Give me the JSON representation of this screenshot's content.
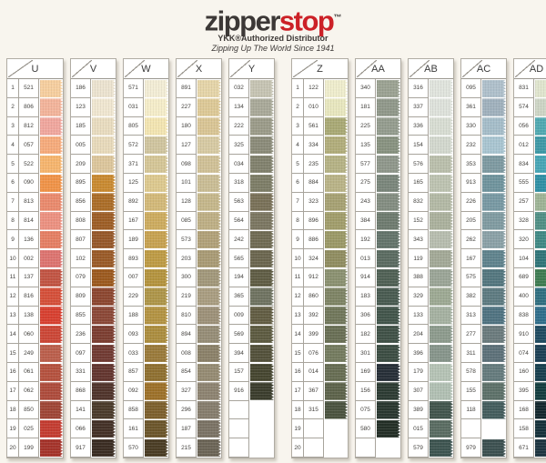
{
  "header": {
    "logo_zipper": "zipper",
    "logo_stop": "stop",
    "logo_tm": "™",
    "subtitle": "YKK®Authorized Distributor",
    "tagline": "Zipping Up The World Since 1941",
    "brand_dark": "#3c3836",
    "brand_red": "#cc2127"
  },
  "row_numbers": [
    "1",
    "2",
    "3",
    "4",
    "5",
    "6",
    "7",
    "8",
    "9",
    "10",
    "11",
    "12",
    "13",
    "14",
    "15",
    "16",
    "17",
    "18",
    "19",
    "20"
  ],
  "columns": [
    {
      "label": "U",
      "has_numbers": true,
      "gap_before": false,
      "swatches": [
        {
          "code": "521",
          "color": "#f6cf9f"
        },
        {
          "code": "806",
          "color": "#f3b49b"
        },
        {
          "code": "812",
          "color": "#f0a79e"
        },
        {
          "code": "057",
          "color": "#f6ab7c"
        },
        {
          "code": "522",
          "color": "#f6b56e"
        },
        {
          "code": "090",
          "color": "#f09348"
        },
        {
          "code": "813",
          "color": "#ea8a6d"
        },
        {
          "code": "814",
          "color": "#ec9181"
        },
        {
          "code": "136",
          "color": "#e57f64"
        },
        {
          "code": "002",
          "color": "#dd7470"
        },
        {
          "code": "137",
          "color": "#c25544"
        },
        {
          "code": "816",
          "color": "#d5503a"
        },
        {
          "code": "138",
          "color": "#d84030"
        },
        {
          "code": "060",
          "color": "#cc4737"
        },
        {
          "code": "249",
          "color": "#bb5f4c"
        },
        {
          "code": "061",
          "color": "#b5523f"
        },
        {
          "code": "062",
          "color": "#ae4c3c"
        },
        {
          "code": "850",
          "color": "#9f4636"
        },
        {
          "code": "025",
          "color": "#c43d31"
        },
        {
          "code": "199",
          "color": "#a5342b"
        }
      ]
    },
    {
      "label": "V",
      "has_numbers": false,
      "gap_before": false,
      "swatches": [
        {
          "code": "186",
          "color": "#ece3d0"
        },
        {
          "code": "123",
          "color": "#f0e7d1"
        },
        {
          "code": "185",
          "color": "#e9dcc0"
        },
        {
          "code": "005",
          "color": "#e8dabb"
        },
        {
          "code": "209",
          "color": "#dcc69c"
        },
        {
          "code": "895",
          "color": "#c98a31"
        },
        {
          "code": "856",
          "color": "#ab6d28"
        },
        {
          "code": "808",
          "color": "#9d5e26"
        },
        {
          "code": "807",
          "color": "#96582a"
        },
        {
          "code": "102",
          "color": "#9a5b28"
        },
        {
          "code": "079",
          "color": "#9c5a1f"
        },
        {
          "code": "809",
          "color": "#8c4730"
        },
        {
          "code": "855",
          "color": "#8b4837"
        },
        {
          "code": "236",
          "color": "#7c3e31"
        },
        {
          "code": "097",
          "color": "#713b33"
        },
        {
          "code": "331",
          "color": "#63362f"
        },
        {
          "code": "868",
          "color": "#50342b"
        },
        {
          "code": "141",
          "color": "#4b3b2b"
        },
        {
          "code": "066",
          "color": "#443127"
        },
        {
          "code": "917",
          "color": "#3b2d23"
        }
      ]
    },
    {
      "label": "W",
      "has_numbers": false,
      "gap_before": false,
      "swatches": [
        {
          "code": "571",
          "color": "#f3edd6"
        },
        {
          "code": "031",
          "color": "#f5edca"
        },
        {
          "code": "805",
          "color": "#f3e5b2"
        },
        {
          "code": "572",
          "color": "#d0c59f"
        },
        {
          "code": "371",
          "color": "#d5c697"
        },
        {
          "code": "125",
          "color": "#ddc98f"
        },
        {
          "code": "892",
          "color": "#d3b979"
        },
        {
          "code": "167",
          "color": "#cdac5f"
        },
        {
          "code": "189",
          "color": "#c7a251"
        },
        {
          "code": "893",
          "color": "#be9b45"
        },
        {
          "code": "007",
          "color": "#b4943f"
        },
        {
          "code": "229",
          "color": "#ae9549"
        },
        {
          "code": "188",
          "color": "#b39343"
        },
        {
          "code": "093",
          "color": "#ac8d3f"
        },
        {
          "code": "033",
          "color": "#9a7a3b"
        },
        {
          "code": "857",
          "color": "#8f7031"
        },
        {
          "code": "092",
          "color": "#9d7129"
        },
        {
          "code": "858",
          "color": "#7d602d"
        },
        {
          "code": "161",
          "color": "#6c562b"
        },
        {
          "code": "570",
          "color": "#4b3d25"
        }
      ]
    },
    {
      "label": "X",
      "has_numbers": false,
      "gap_before": false,
      "swatches": [
        {
          "code": "891",
          "color": "#e5d5a9"
        },
        {
          "code": "227",
          "color": "#ddc997"
        },
        {
          "code": "180",
          "color": "#d9c595"
        },
        {
          "code": "127",
          "color": "#d7caa3"
        },
        {
          "code": "098",
          "color": "#d0c197"
        },
        {
          "code": "101",
          "color": "#cabd95"
        },
        {
          "code": "128",
          "color": "#c5b78b"
        },
        {
          "code": "085",
          "color": "#beaf85"
        },
        {
          "code": "573",
          "color": "#b1a179"
        },
        {
          "code": "203",
          "color": "#a99b75"
        },
        {
          "code": "300",
          "color": "#a2987b"
        },
        {
          "code": "219",
          "color": "#a99d81"
        },
        {
          "code": "810",
          "color": "#9d9179"
        },
        {
          "code": "894",
          "color": "#968d77"
        },
        {
          "code": "008",
          "color": "#8b8169"
        },
        {
          "code": "854",
          "color": "#958b73"
        },
        {
          "code": "327",
          "color": "#8d8371"
        },
        {
          "code": "296",
          "color": "#867d6d"
        },
        {
          "code": "187",
          "color": "#7b7365"
        },
        {
          "code": "215",
          "color": "#6c6557"
        }
      ]
    },
    {
      "label": "Y",
      "has_numbers": false,
      "gap_before": false,
      "swatches": [
        {
          "code": "032",
          "color": "#c6c4b3"
        },
        {
          "code": "134",
          "color": "#a9a999"
        },
        {
          "code": "222",
          "color": "#9b9b89"
        },
        {
          "code": "325",
          "color": "#8b8b79"
        },
        {
          "code": "034",
          "color": "#81816d"
        },
        {
          "code": "318",
          "color": "#7d7d67"
        },
        {
          "code": "563",
          "color": "#797158"
        },
        {
          "code": "564",
          "color": "#7b7661"
        },
        {
          "code": "242",
          "color": "#706b53"
        },
        {
          "code": "565",
          "color": "#6b664f"
        },
        {
          "code": "194",
          "color": "#605d45"
        },
        {
          "code": "365",
          "color": "#6f7361"
        },
        {
          "code": "009",
          "color": "#625d43"
        },
        {
          "code": "569",
          "color": "#5d5b41"
        },
        {
          "code": "394",
          "color": "#53513b"
        },
        {
          "code": "157",
          "color": "#464630"
        },
        {
          "code": "916",
          "color": "#3b3d2d"
        },
        {
          "code": "",
          "color": null
        },
        {
          "code": "",
          "color": null
        },
        {
          "code": "",
          "color": null
        }
      ]
    },
    {
      "label": "Z",
      "has_numbers": true,
      "gap_before": true,
      "swatches": [
        {
          "code": "122",
          "color": "#efedcd"
        },
        {
          "code": "010",
          "color": "#e8e7bf"
        },
        {
          "code": "561",
          "color": "#a9a975"
        },
        {
          "code": "334",
          "color": "#b1ad7b"
        },
        {
          "code": "235",
          "color": "#b5b285"
        },
        {
          "code": "884",
          "color": "#b9b387"
        },
        {
          "code": "323",
          "color": "#a6a173"
        },
        {
          "code": "896",
          "color": "#a19d6b"
        },
        {
          "code": "886",
          "color": "#9b9967"
        },
        {
          "code": "324",
          "color": "#908d61"
        },
        {
          "code": "912",
          "color": "#8b9171"
        },
        {
          "code": "860",
          "color": "#7e8465"
        },
        {
          "code": "392",
          "color": "#71775b"
        },
        {
          "code": "399",
          "color": "#696f55"
        },
        {
          "code": "076",
          "color": "#747b5f"
        },
        {
          "code": "014",
          "color": "#676d53"
        },
        {
          "code": "367",
          "color": "#5d634b"
        },
        {
          "code": "315",
          "color": "#4b533f"
        },
        {
          "code": "",
          "color": null
        },
        {
          "code": "",
          "color": null
        }
      ]
    },
    {
      "label": "AA",
      "has_numbers": false,
      "gap_before": false,
      "swatches": [
        {
          "code": "340",
          "color": "#9ba292"
        },
        {
          "code": "181",
          "color": "#90988a"
        },
        {
          "code": "225",
          "color": "#949c8e"
        },
        {
          "code": "135",
          "color": "#889280"
        },
        {
          "code": "577",
          "color": "#8f978b"
        },
        {
          "code": "275",
          "color": "#7a867b"
        },
        {
          "code": "243",
          "color": "#838d81"
        },
        {
          "code": "384",
          "color": "#6e7b6f"
        },
        {
          "code": "192",
          "color": "#64746b"
        },
        {
          "code": "013",
          "color": "#5b6b61"
        },
        {
          "code": "914",
          "color": "#506155"
        },
        {
          "code": "183",
          "color": "#495b51"
        },
        {
          "code": "306",
          "color": "#42554b"
        },
        {
          "code": "182",
          "color": "#405147"
        },
        {
          "code": "301",
          "color": "#3c4d43"
        },
        {
          "code": "169",
          "color": "#272f38"
        },
        {
          "code": "156",
          "color": "#2c3b33"
        },
        {
          "code": "075",
          "color": "#29372f"
        },
        {
          "code": "580",
          "color": "#242f27"
        },
        {
          "code": "",
          "color": null
        }
      ]
    },
    {
      "label": "AB",
      "has_numbers": false,
      "gap_before": false,
      "swatches": [
        {
          "code": "316",
          "color": "#e0e4dd"
        },
        {
          "code": "337",
          "color": "#dee2db"
        },
        {
          "code": "336",
          "color": "#d8ddd3"
        },
        {
          "code": "154",
          "color": "#d3d8ce"
        },
        {
          "code": "576",
          "color": "#babfac"
        },
        {
          "code": "165",
          "color": "#bdc3b1"
        },
        {
          "code": "832",
          "color": "#b3b9a5"
        },
        {
          "code": "152",
          "color": "#abb19d"
        },
        {
          "code": "343",
          "color": "#b7bdaf"
        },
        {
          "code": "119",
          "color": "#a3a997"
        },
        {
          "code": "388",
          "color": "#9ba597"
        },
        {
          "code": "329",
          "color": "#9da993"
        },
        {
          "code": "133",
          "color": "#a5b1a1"
        },
        {
          "code": "204",
          "color": "#8d9b8d"
        },
        {
          "code": "396",
          "color": "#87958b"
        },
        {
          "code": "179",
          "color": "#b5c3b5"
        },
        {
          "code": "307",
          "color": "#b1c0b3"
        },
        {
          "code": "389",
          "color": "#42554d"
        },
        {
          "code": "015",
          "color": "#5a6c62"
        },
        {
          "code": "579",
          "color": "#3e5551"
        }
      ]
    },
    {
      "label": "AC",
      "has_numbers": false,
      "gap_before": false,
      "swatches": [
        {
          "code": "095",
          "color": "#afc0cb"
        },
        {
          "code": "361",
          "color": "#a0b1bd"
        },
        {
          "code": "330",
          "color": "#a5bdc9"
        },
        {
          "code": "232",
          "color": "#a9c5d1"
        },
        {
          "code": "353",
          "color": "#7e9aa1"
        },
        {
          "code": "913",
          "color": "#70949d"
        },
        {
          "code": "226",
          "color": "#7899a3"
        },
        {
          "code": "205",
          "color": "#809ba1"
        },
        {
          "code": "262",
          "color": "#8ba1a7"
        },
        {
          "code": "167",
          "color": "#60838d"
        },
        {
          "code": "575",
          "color": "#54777f"
        },
        {
          "code": "382",
          "color": "#5e7b81"
        },
        {
          "code": "313",
          "color": "#507381"
        },
        {
          "code": "277",
          "color": "#6b7b7d"
        },
        {
          "code": "311",
          "color": "#5d7179"
        },
        {
          "code": "578",
          "color": "#657b7d"
        },
        {
          "code": "155",
          "color": "#5d7169"
        },
        {
          "code": "118",
          "color": "#445d5d"
        },
        {
          "code": "",
          "color": null
        },
        {
          "code": "979",
          "color": "#3d5151"
        }
      ]
    },
    {
      "label": "AD",
      "has_numbers": false,
      "gap_before": false,
      "swatches": [
        {
          "code": "831",
          "color": "#e0e5ce"
        },
        {
          "code": "574",
          "color": "#cdd5c5"
        },
        {
          "code": "056",
          "color": "#50a9b1"
        },
        {
          "code": "012",
          "color": "#3e99a6"
        },
        {
          "code": "834",
          "color": "#47a5b5"
        },
        {
          "code": "555",
          "color": "#3090a5"
        },
        {
          "code": "257",
          "color": "#9db395"
        },
        {
          "code": "328",
          "color": "#508f85"
        },
        {
          "code": "320",
          "color": "#408985"
        },
        {
          "code": "104",
          "color": "#307579"
        },
        {
          "code": "689",
          "color": "#3f7c52"
        },
        {
          "code": "400",
          "color": "#306f81"
        },
        {
          "code": "838",
          "color": "#306e8b"
        },
        {
          "code": "910",
          "color": "#204b61"
        },
        {
          "code": "074",
          "color": "#1d4055"
        },
        {
          "code": "160",
          "color": "#18404f"
        },
        {
          "code": "395",
          "color": "#133d3f"
        },
        {
          "code": "168",
          "color": "#13272d"
        },
        {
          "code": "158",
          "color": "#15313b"
        },
        {
          "code": "671",
          "color": "#1d3541"
        }
      ]
    }
  ]
}
